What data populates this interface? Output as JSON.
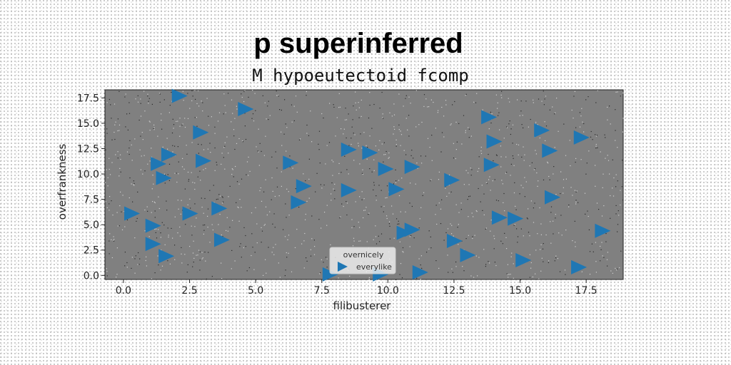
{
  "chart_data": {
    "type": "scatter",
    "title": "p superinferred",
    "subtitle": "M hypoeutectoid fcomp",
    "xlabel": "filibusterer",
    "ylabel": "overfrankness",
    "xlim": [
      -0.7,
      18.9
    ],
    "ylim": [
      -0.4,
      18.3
    ],
    "x_ticks": [
      "0.0",
      "2.5",
      "5.0",
      "7.5",
      "10.0",
      "12.5",
      "15.0",
      "17.5"
    ],
    "y_ticks": [
      "0.0",
      "2.5",
      "5.0",
      "7.5",
      "10.0",
      "12.5",
      "15.0",
      "17.5"
    ],
    "marker": "triangle-right",
    "grid": false,
    "legend": {
      "title": "overnicely",
      "position": "bottom-center",
      "entries": [
        "everylike"
      ]
    },
    "colors": {
      "series": "#1f77b4",
      "plot_background": "#808080",
      "legend_background": "#f2f2f2"
    },
    "series": [
      {
        "name": "everylike",
        "points": [
          {
            "x": 2.1,
            "y": 17.7
          },
          {
            "x": 4.6,
            "y": 16.4
          },
          {
            "x": 13.8,
            "y": 15.6
          },
          {
            "x": 15.8,
            "y": 14.3
          },
          {
            "x": 17.3,
            "y": 13.6
          },
          {
            "x": 14.0,
            "y": 13.2
          },
          {
            "x": 2.9,
            "y": 14.1
          },
          {
            "x": 8.5,
            "y": 12.4
          },
          {
            "x": 9.3,
            "y": 12.1
          },
          {
            "x": 16.1,
            "y": 12.3
          },
          {
            "x": 1.7,
            "y": 11.9
          },
          {
            "x": 3.0,
            "y": 11.3
          },
          {
            "x": 1.3,
            "y": 11.0
          },
          {
            "x": 6.3,
            "y": 11.1
          },
          {
            "x": 13.9,
            "y": 10.9
          },
          {
            "x": 10.9,
            "y": 10.7
          },
          {
            "x": 9.9,
            "y": 10.5
          },
          {
            "x": 1.5,
            "y": 9.6
          },
          {
            "x": 12.4,
            "y": 9.4
          },
          {
            "x": 6.8,
            "y": 8.8
          },
          {
            "x": 10.3,
            "y": 8.5
          },
          {
            "x": 8.5,
            "y": 8.4
          },
          {
            "x": 16.2,
            "y": 7.7
          },
          {
            "x": 6.6,
            "y": 7.2
          },
          {
            "x": 0.3,
            "y": 6.1
          },
          {
            "x": 2.5,
            "y": 6.1
          },
          {
            "x": 3.6,
            "y": 6.6
          },
          {
            "x": 14.2,
            "y": 5.7
          },
          {
            "x": 14.8,
            "y": 5.6
          },
          {
            "x": 1.1,
            "y": 4.9
          },
          {
            "x": 18.1,
            "y": 4.4
          },
          {
            "x": 10.9,
            "y": 4.5
          },
          {
            "x": 10.6,
            "y": 4.2
          },
          {
            "x": 3.7,
            "y": 3.5
          },
          {
            "x": 12.5,
            "y": 3.4
          },
          {
            "x": 1.1,
            "y": 3.1
          },
          {
            "x": 1.6,
            "y": 1.9
          },
          {
            "x": 13.0,
            "y": 2.0
          },
          {
            "x": 15.1,
            "y": 1.5
          },
          {
            "x": 17.2,
            "y": 0.8
          },
          {
            "x": 11.2,
            "y": 0.3
          },
          {
            "x": 7.8,
            "y": 0.1
          },
          {
            "x": 9.7,
            "y": 0.1
          }
        ]
      }
    ]
  }
}
